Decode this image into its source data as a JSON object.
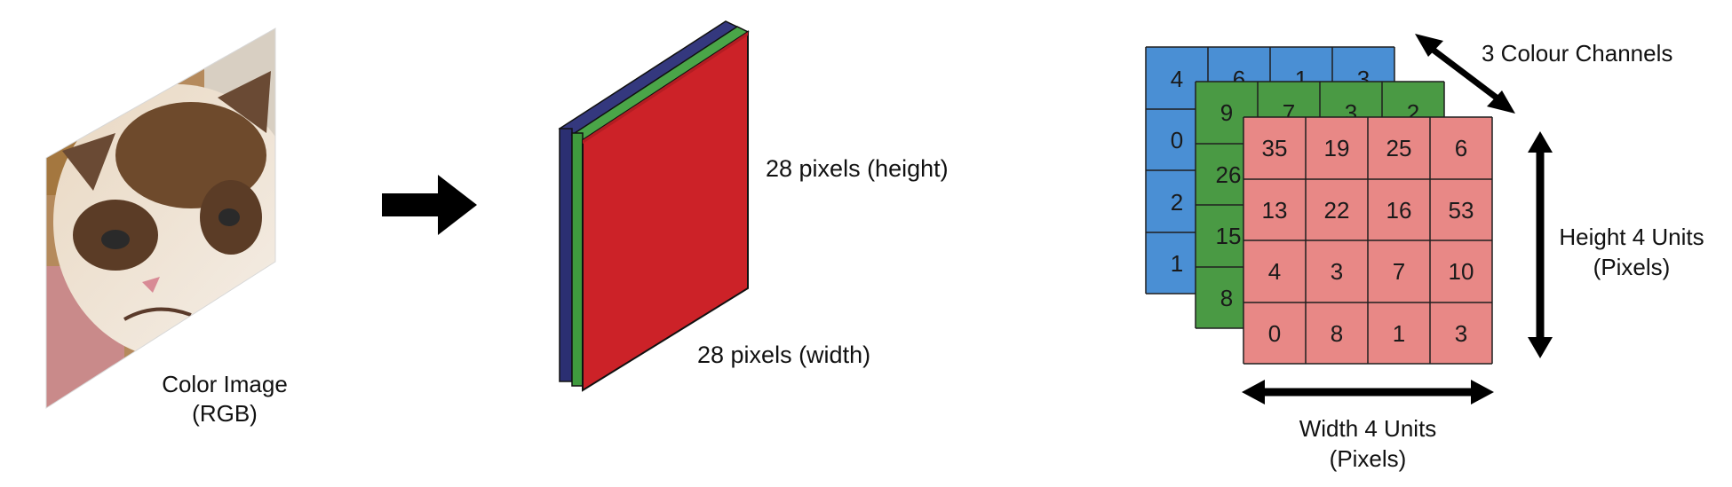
{
  "image_panel": {
    "caption_line1": "Color Image",
    "caption_line2": "(RGB)"
  },
  "volume_panel": {
    "height_label": "28 pixels (height)",
    "width_label": "28 pixels (width)"
  },
  "grid_panel": {
    "channels_label": "3 Colour Channels",
    "height_label_line1": "Height 4 Units",
    "height_label_line2": "(Pixels)",
    "width_label_line1": "Width 4 Units",
    "width_label_line2": "(Pixels)",
    "blue_visible": {
      "top_row": [
        "4",
        "6",
        "1",
        "3"
      ],
      "left_col": [
        "4",
        "0",
        "2",
        "1"
      ]
    },
    "green_visible": {
      "top_row": [
        "9",
        "7",
        "3",
        "2"
      ],
      "left_col": [
        "9",
        "26",
        "15",
        "8"
      ]
    },
    "red_matrix": [
      [
        "35",
        "19",
        "25",
        "6"
      ],
      [
        "13",
        "22",
        "16",
        "53"
      ],
      [
        "4",
        "3",
        "7",
        "10"
      ],
      [
        "0",
        "8",
        "1",
        "3"
      ]
    ]
  },
  "colors": {
    "blue_channel": "#4a8fd4",
    "green_channel": "#4a9a44",
    "red_channel": "#e88886",
    "volume_red": "#cc2228",
    "volume_green": "#3f9a3e",
    "volume_navy": "#2b2f72"
  }
}
